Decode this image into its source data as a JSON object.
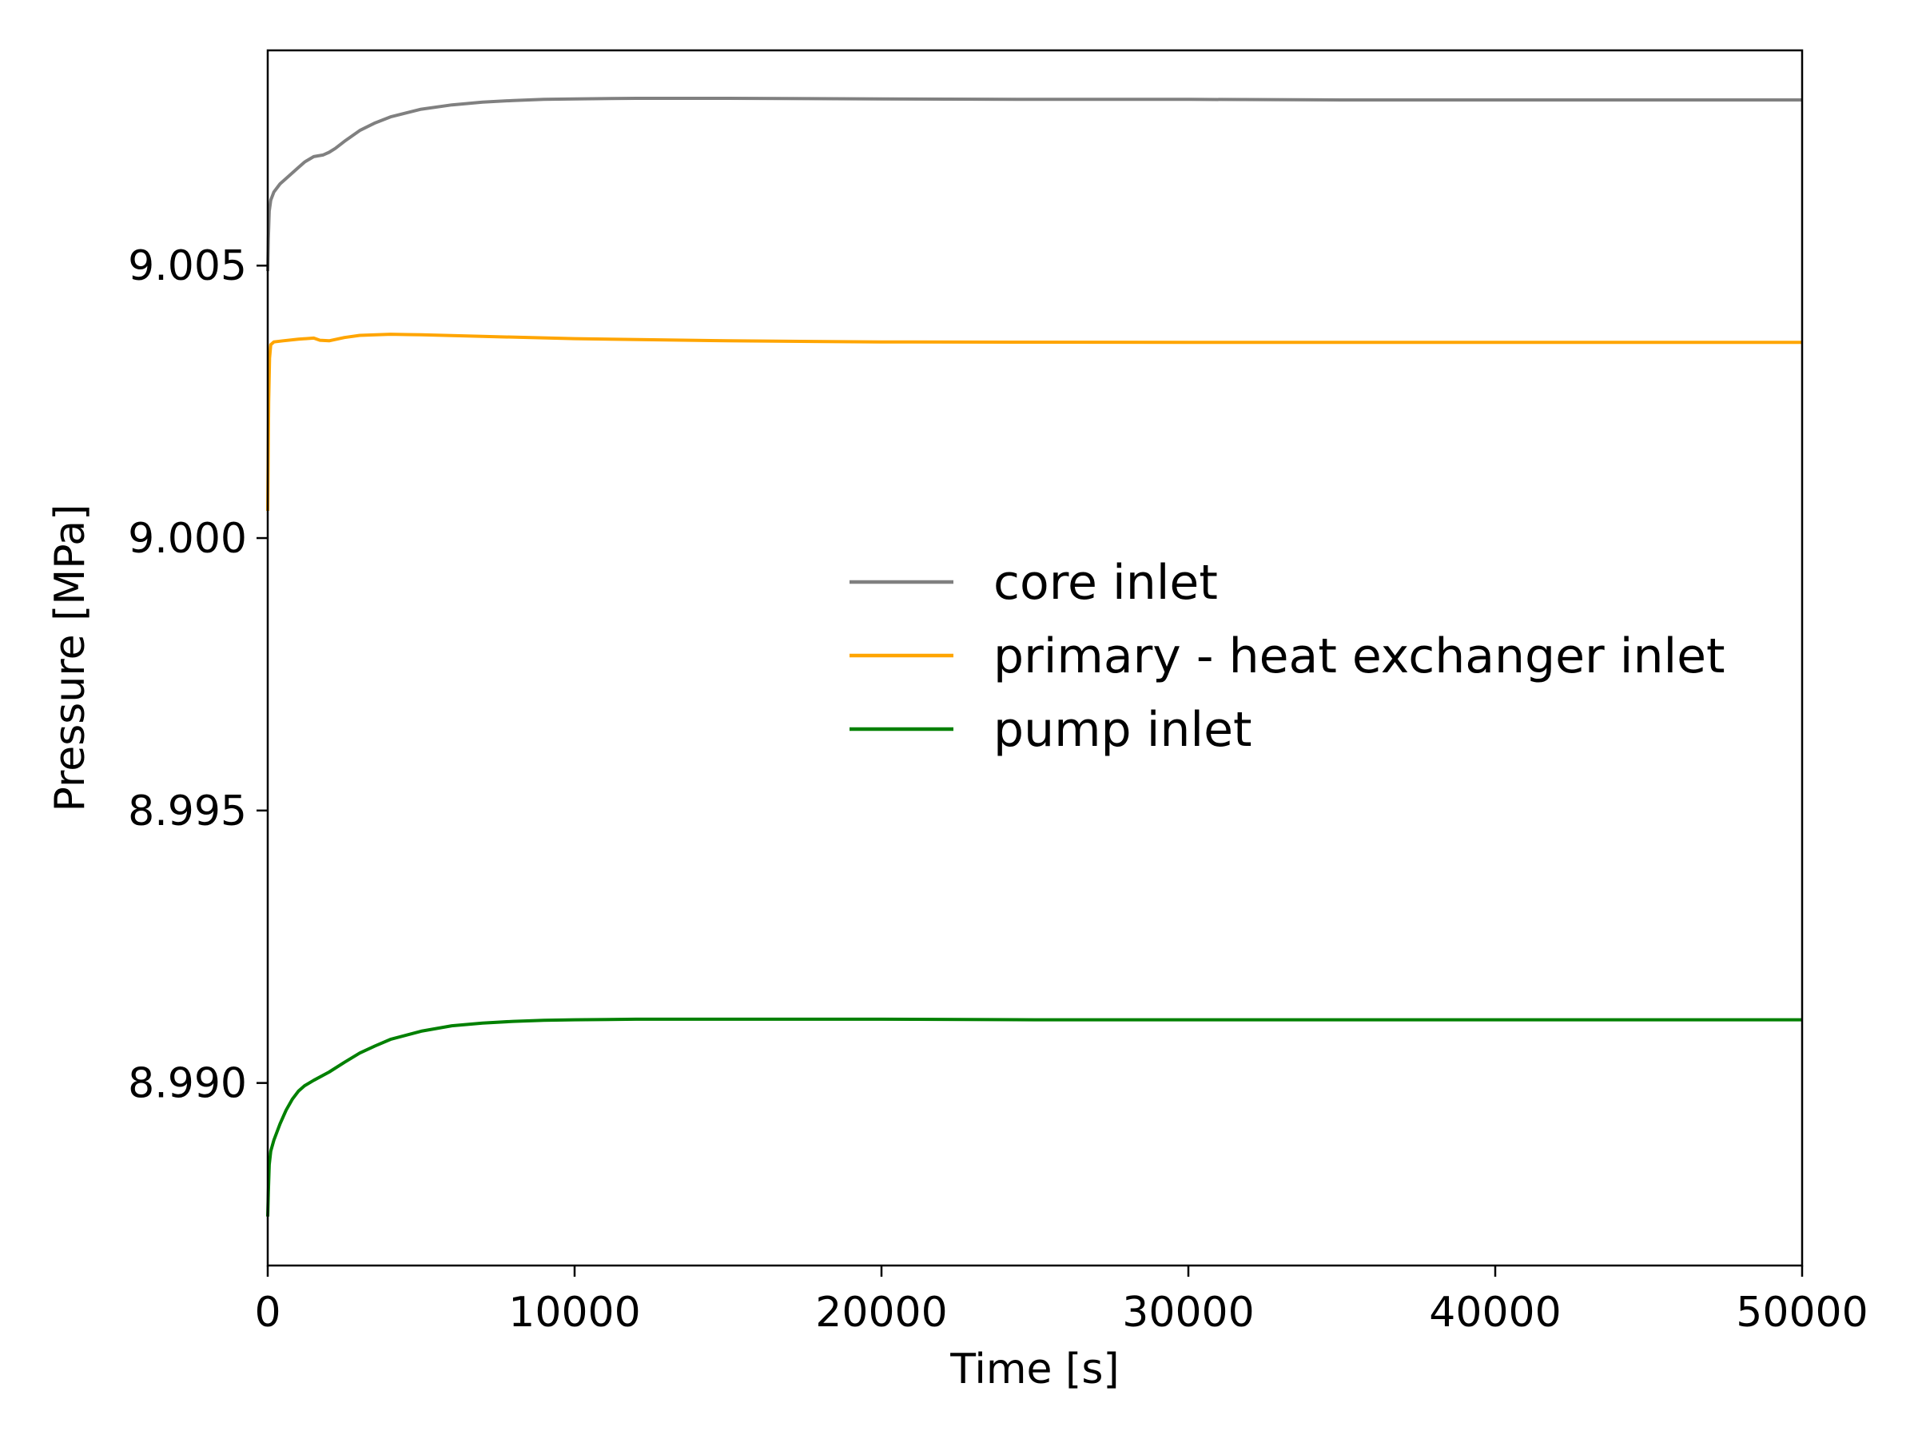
{
  "chart_data": {
    "type": "line",
    "title": "",
    "xlabel": "Time [s]",
    "ylabel": "Pressure [MPa]",
    "xlim": [
      0,
      50000
    ],
    "ylim": [
      8.98665,
      9.00895
    ],
    "x_ticks": [
      0,
      10000,
      20000,
      30000,
      40000,
      50000
    ],
    "x_tick_labels": [
      "0",
      "10000",
      "20000",
      "30000",
      "40000",
      "50000"
    ],
    "y_ticks": [
      8.99,
      8.995,
      9.0,
      9.005
    ],
    "y_tick_labels": [
      "8.990",
      "8.995",
      "9.000",
      "9.005"
    ],
    "grid": false,
    "legend_position": "center-right",
    "series": [
      {
        "name": "core inlet",
        "color": "#808080",
        "x": [
          0,
          20,
          50,
          100,
          200,
          400,
          600,
          800,
          1000,
          1200,
          1500,
          1800,
          2000,
          2200,
          2500,
          3000,
          3500,
          4000,
          5000,
          6000,
          7000,
          8000,
          9000,
          10000,
          12000,
          15000,
          20000,
          25000,
          30000,
          35000,
          40000,
          45000,
          50000
        ],
        "y": [
          9.0049,
          9.0055,
          9.006,
          9.0062,
          9.00635,
          9.0065,
          9.0066,
          9.0067,
          9.0068,
          9.0069,
          9.007,
          9.00703,
          9.00708,
          9.00715,
          9.00728,
          9.00748,
          9.00762,
          9.00773,
          9.00787,
          9.00795,
          9.008,
          9.00803,
          9.00805,
          9.00806,
          9.00807,
          9.00807,
          9.00806,
          9.00805,
          9.00805,
          9.00804,
          9.00804,
          9.00804,
          9.00804
        ]
      },
      {
        "name": "primary - heat exchanger inlet",
        "color": "#FFA500",
        "x": [
          0,
          30,
          60,
          100,
          200,
          500,
          1000,
          1500,
          1700,
          2000,
          2500,
          3000,
          4000,
          5000,
          7000,
          10000,
          15000,
          20000,
          30000,
          40000,
          50000
        ],
        "y": [
          9.0005,
          9.0025,
          9.0033,
          9.00355,
          9.0036,
          9.00362,
          9.00365,
          9.00367,
          9.00363,
          9.00362,
          9.00368,
          9.00372,
          9.00374,
          9.00373,
          9.0037,
          9.00366,
          9.00362,
          9.0036,
          9.00359,
          9.00359,
          9.00359
        ]
      },
      {
        "name": "pump inlet",
        "color": "#008000",
        "x": [
          0,
          20,
          50,
          100,
          200,
          400,
          600,
          800,
          1000,
          1200,
          1500,
          2000,
          2500,
          3000,
          3500,
          4000,
          5000,
          6000,
          7000,
          8000,
          9000,
          10000,
          12000,
          15000,
          20000,
          25000,
          30000,
          35000,
          40000,
          45000,
          50000
        ],
        "y": [
          8.98755,
          8.988,
          8.9885,
          8.98875,
          8.98895,
          8.98925,
          8.9895,
          8.9897,
          8.98985,
          8.98995,
          8.99005,
          8.9902,
          8.99038,
          8.99055,
          8.99068,
          8.9908,
          8.99095,
          8.99105,
          8.9911,
          8.99113,
          8.99115,
          8.99116,
          8.99117,
          8.99117,
          8.99117,
          8.99116,
          8.99116,
          8.99116,
          8.99116,
          8.99116,
          8.99116
        ]
      }
    ]
  }
}
